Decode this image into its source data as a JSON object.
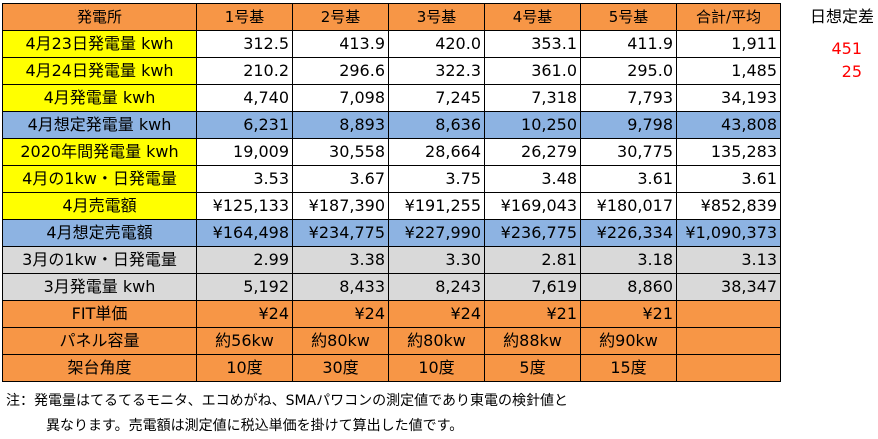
{
  "table": {
    "headers": [
      "発電所",
      "1号基",
      "2号基",
      "3号基",
      "4号基",
      "5号基",
      "合計/平均"
    ],
    "rows": [
      {
        "label": "4月23日発電量 kwh",
        "cells": [
          "312.5",
          "413.9",
          "420.0",
          "353.1",
          "411.9",
          "1,911"
        ]
      },
      {
        "label": "4月24日発電量 kwh",
        "cells": [
          "210.2",
          "296.6",
          "322.3",
          "361.0",
          "295.0",
          "1,485"
        ]
      },
      {
        "label": "4月発電量 kwh",
        "cells": [
          "4,740",
          "7,098",
          "7,245",
          "7,318",
          "7,793",
          "34,193"
        ]
      },
      {
        "label": "4月想定発電量 kwh",
        "cells": [
          "6,231",
          "8,893",
          "8,636",
          "10,250",
          "9,798",
          "43,808"
        ]
      },
      {
        "label": "2020年間発電量 kwh",
        "cells": [
          "19,009",
          "30,558",
          "28,664",
          "26,279",
          "30,775",
          "135,283"
        ]
      },
      {
        "label": "4月の1kw・日発電量",
        "cells": [
          "3.53",
          "3.67",
          "3.75",
          "3.48",
          "3.61",
          "3.61"
        ]
      },
      {
        "label": "4月売電額",
        "cells": [
          "¥125,133",
          "¥187,390",
          "¥191,255",
          "¥169,043",
          "¥180,017",
          "¥852,839"
        ]
      },
      {
        "label": "4月想定売電額",
        "cells": [
          "¥164,498",
          "¥234,775",
          "¥227,990",
          "¥236,775",
          "¥226,334",
          "¥1,090,373"
        ]
      },
      {
        "label": "3月の1kw・日発電量",
        "cells": [
          "2.99",
          "3.38",
          "3.30",
          "2.81",
          "3.18",
          "3.13"
        ]
      },
      {
        "label": "3月発電量 kwh",
        "cells": [
          "5,192",
          "8,433",
          "8,243",
          "7,619",
          "8,860",
          "38,347"
        ]
      },
      {
        "label": "FIT単価",
        "cells": [
          "¥24",
          "¥24",
          "¥24",
          "¥21",
          "¥21",
          ""
        ]
      },
      {
        "label": "パネル容量",
        "cells": [
          "約56kw",
          "約80kw",
          "約80kw",
          "約88kw",
          "約90kw",
          ""
        ]
      },
      {
        "label": "架台角度",
        "cells": [
          "10度",
          "30度",
          "10度",
          "5度",
          "15度",
          ""
        ]
      }
    ]
  },
  "side": {
    "title": "日想定差",
    "values": [
      "451",
      "25"
    ]
  },
  "note": {
    "line1": "注：発電量はてるてるモニタ、エコめがね、SMAパワコンの測定値であり東電の検針値と",
    "line2": "異なります。売電額は測定値に税込単価を掛けて算出した値です。"
  },
  "colors": {
    "header": "#f79646",
    "yellow": "#ffff00",
    "blue": "#8db3e2",
    "gray": "#d9d9d9",
    "red": "#ff0000"
  }
}
